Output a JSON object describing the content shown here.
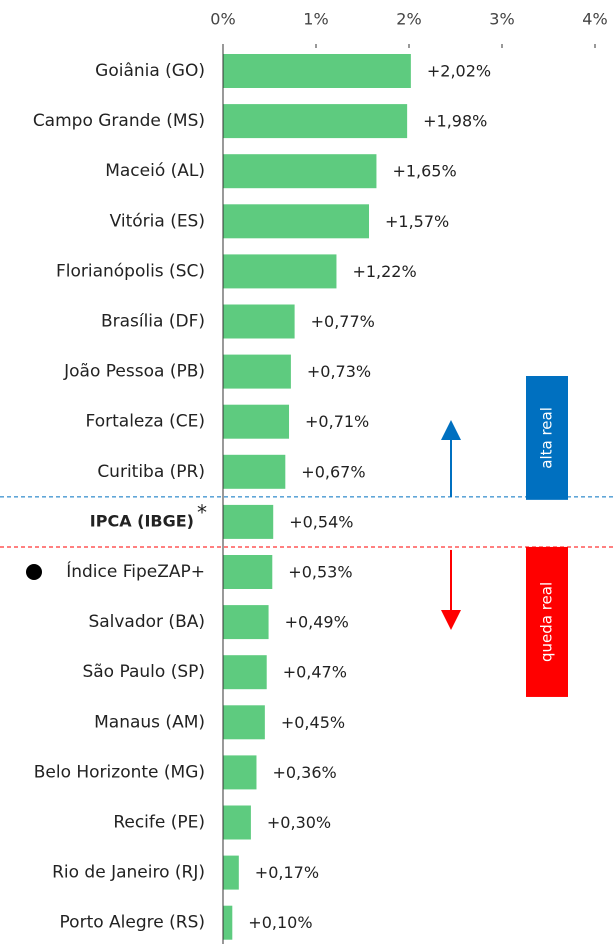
{
  "chart_data": {
    "type": "bar",
    "orientation": "horizontal",
    "categories": [
      "Goiânia (GO)",
      "Campo Grande (MS)",
      "Maceió (AL)",
      "Vitória (ES)",
      "Florianópolis (SC)",
      "Brasília (DF)",
      "João Pessoa (PB)",
      "Fortaleza (CE)",
      "Curitiba (PR)",
      "IPCA (IBGE)",
      "Índice FipeZAP+",
      "Salvador (BA)",
      "São Paulo (SP)",
      "Manaus (AM)",
      "Belo Horizonte (MG)",
      "Recife (PE)",
      "Rio de Janeiro (RJ)",
      "Porto Alegre (RS)"
    ],
    "values": [
      2.02,
      1.98,
      1.65,
      1.57,
      1.22,
      0.77,
      0.73,
      0.71,
      0.67,
      0.54,
      0.53,
      0.49,
      0.47,
      0.45,
      0.36,
      0.3,
      0.17,
      0.1
    ],
    "value_labels": [
      "+2,02%",
      "+1,98%",
      "+1,65%",
      "+1,57%",
      "+1,22%",
      "+0,77%",
      "+0,73%",
      "+0,71%",
      "+0,67%",
      "+0,54%",
      "+0,53%",
      "+0,49%",
      "+0,47%",
      "+0,45%",
      "+0,36%",
      "+0,30%",
      "+0,17%",
      "+0,10%"
    ],
    "color": "#5ecb7f",
    "xlim": [
      0,
      4
    ],
    "xticks": [
      {
        "value": 0,
        "label": "0%"
      },
      {
        "value": 1,
        "label": "1%"
      },
      {
        "value": 2,
        "label": "2%"
      },
      {
        "value": 3,
        "label": "3%"
      },
      {
        "value": 4,
        "label": "4%"
      }
    ],
    "bold_categories": [
      9
    ],
    "marker_categories": [
      10
    ],
    "annotations": {
      "asterisk": "*",
      "above": "alta real",
      "below": "queda real"
    },
    "above_color": "#0070c0",
    "below_color": "#ff0000"
  }
}
